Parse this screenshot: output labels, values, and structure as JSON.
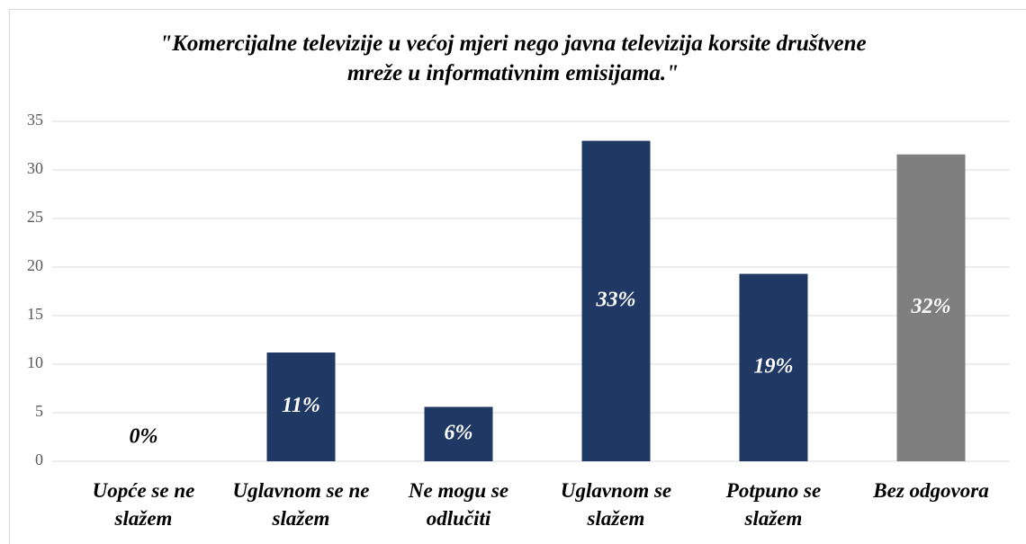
{
  "chart_data": {
    "type": "bar",
    "title": "\"Komercijalne televizije u većoj mjeri nego javna televizija korsite društvene mreže u informativnim emisijama.\"",
    "categories": [
      "Uopće se ne slažem",
      "Uglavnom se ne slažem",
      "Ne mogu se odlučiti",
      "Uglavnom se slažem",
      "Potpuno se slažem",
      "Bez odgovora"
    ],
    "values": [
      0,
      11.2,
      5.6,
      33,
      19.3,
      31.6
    ],
    "value_labels": [
      "0%",
      "11%",
      "6%",
      "33%",
      "19%",
      "32%"
    ],
    "colors": [
      "#1f3864",
      "#1f3864",
      "#1f3864",
      "#1f3864",
      "#1f3864",
      "#7f7f7f"
    ],
    "ylim": [
      0,
      35
    ],
    "yticks": [
      0,
      5,
      10,
      15,
      20,
      25,
      30,
      35
    ],
    "grid": true
  }
}
